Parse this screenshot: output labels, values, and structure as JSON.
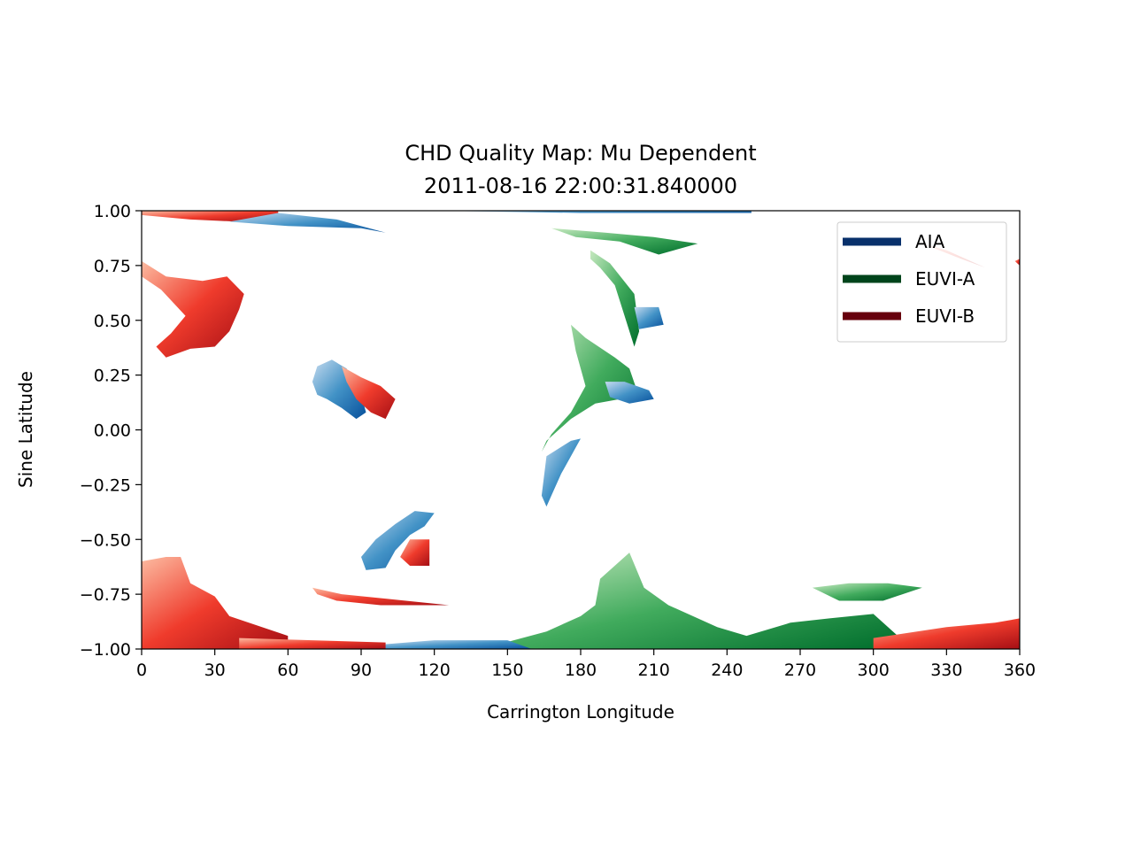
{
  "title": {
    "line1": "CHD Quality Map: Mu Dependent",
    "line2": "2011-08-16 22:00:31.840000"
  },
  "chart_data": {
    "type": "heatmap",
    "title": "CHD Quality Map: Mu Dependent 2011-08-16 22:00:31.840000",
    "xlabel": "Carrington Longitude",
    "ylabel": "Sine Latitude",
    "xlim": [
      0,
      360
    ],
    "ylim": [
      -1.0,
      1.0
    ],
    "x_ticks": [
      "0",
      "30",
      "60",
      "90",
      "120",
      "150",
      "180",
      "210",
      "240",
      "270",
      "300",
      "330",
      "360"
    ],
    "y_ticks": [
      "1.00",
      "0.75",
      "0.50",
      "0.25",
      "0.00",
      "−0.25",
      "−0.50",
      "−0.75",
      "−1.00"
    ],
    "legend_position": "top-right",
    "grid": false,
    "series": [
      {
        "name": "AIA",
        "color": "#08306b"
      },
      {
        "name": "EUVI-A",
        "color": "#00441b"
      },
      {
        "name": "EUVI-B",
        "color": "#67000d"
      }
    ],
    "regions": [
      {
        "instrument": "EUVI-B",
        "points": [
          [
            0,
            0.77
          ],
          [
            10,
            0.7
          ],
          [
            25,
            0.68
          ],
          [
            35,
            0.7
          ],
          [
            42,
            0.62
          ],
          [
            40,
            0.55
          ],
          [
            36,
            0.45
          ],
          [
            30,
            0.38
          ],
          [
            20,
            0.37
          ],
          [
            10,
            0.33
          ],
          [
            6,
            0.38
          ],
          [
            12,
            0.44
          ],
          [
            18,
            0.52
          ],
          [
            8,
            0.64
          ],
          [
            0,
            0.7
          ]
        ]
      },
      {
        "instrument": "AIA",
        "points": [
          [
            72,
            0.29
          ],
          [
            78,
            0.32
          ],
          [
            84,
            0.28
          ],
          [
            90,
            0.16
          ],
          [
            92,
            0.08
          ],
          [
            88,
            0.05
          ],
          [
            82,
            0.1
          ],
          [
            76,
            0.14
          ],
          [
            72,
            0.16
          ],
          [
            70,
            0.22
          ]
        ]
      },
      {
        "instrument": "EUVI-B",
        "points": [
          [
            82,
            0.29
          ],
          [
            90,
            0.24
          ],
          [
            98,
            0.2
          ],
          [
            104,
            0.14
          ],
          [
            100,
            0.05
          ],
          [
            94,
            0.08
          ],
          [
            88,
            0.14
          ],
          [
            84,
            0.22
          ]
        ]
      },
      {
        "instrument": "AIA",
        "points": [
          [
            104,
            -0.43
          ],
          [
            112,
            -0.37
          ],
          [
            120,
            -0.38
          ],
          [
            116,
            -0.44
          ],
          [
            110,
            -0.48
          ],
          [
            104,
            -0.55
          ],
          [
            100,
            -0.63
          ],
          [
            92,
            -0.64
          ],
          [
            90,
            -0.58
          ],
          [
            96,
            -0.5
          ]
        ]
      },
      {
        "instrument": "EUVI-B",
        "points": [
          [
            110,
            -0.5
          ],
          [
            118,
            -0.5
          ],
          [
            118,
            -0.62
          ],
          [
            110,
            -0.62
          ],
          [
            106,
            -0.58
          ]
        ]
      },
      {
        "instrument": "AIA",
        "points": [
          [
            166,
            -0.12
          ],
          [
            176,
            -0.05
          ],
          [
            180,
            -0.04
          ],
          [
            176,
            -0.12
          ],
          [
            172,
            -0.2
          ],
          [
            168,
            -0.3
          ],
          [
            166,
            -0.35
          ],
          [
            164,
            -0.3
          ]
        ]
      },
      {
        "instrument": "EUVI-A",
        "points": [
          [
            176,
            0.48
          ],
          [
            182,
            0.42
          ],
          [
            194,
            0.33
          ],
          [
            200,
            0.28
          ],
          [
            204,
            0.15
          ],
          [
            196,
            0.14
          ],
          [
            186,
            0.12
          ],
          [
            176,
            0.05
          ],
          [
            166,
            -0.05
          ],
          [
            164,
            -0.1
          ],
          [
            168,
            -0.02
          ],
          [
            176,
            0.08
          ],
          [
            182,
            0.2
          ],
          [
            178,
            0.36
          ]
        ]
      },
      {
        "instrument": "AIA",
        "points": [
          [
            190,
            0.22
          ],
          [
            198,
            0.22
          ],
          [
            208,
            0.18
          ],
          [
            210,
            0.14
          ],
          [
            200,
            0.12
          ],
          [
            192,
            0.15
          ]
        ]
      },
      {
        "instrument": "EUVI-A",
        "points": [
          [
            184,
            0.82
          ],
          [
            192,
            0.76
          ],
          [
            202,
            0.62
          ],
          [
            204,
            0.45
          ],
          [
            202,
            0.38
          ],
          [
            198,
            0.52
          ],
          [
            194,
            0.66
          ],
          [
            188,
            0.74
          ],
          [
            184,
            0.78
          ]
        ]
      },
      {
        "instrument": "EUVI-A",
        "points": [
          [
            168,
            0.92
          ],
          [
            190,
            0.9
          ],
          [
            210,
            0.88
          ],
          [
            222,
            0.86
          ],
          [
            228,
            0.85
          ],
          [
            212,
            0.8
          ],
          [
            196,
            0.86
          ],
          [
            178,
            0.88
          ]
        ]
      },
      {
        "instrument": "AIA",
        "points": [
          [
            202,
            0.56
          ],
          [
            212,
            0.56
          ],
          [
            214,
            0.48
          ],
          [
            204,
            0.46
          ]
        ]
      },
      {
        "instrument": "EUVI-B",
        "points": [
          [
            0,
            -0.6
          ],
          [
            10,
            -0.58
          ],
          [
            16,
            -0.58
          ],
          [
            20,
            -0.7
          ],
          [
            30,
            -0.76
          ],
          [
            36,
            -0.85
          ],
          [
            60,
            -0.94
          ],
          [
            60,
            -1.0
          ],
          [
            0,
            -1.0
          ]
        ]
      },
      {
        "instrument": "EUVI-B",
        "points": [
          [
            70,
            -0.72
          ],
          [
            82,
            -0.75
          ],
          [
            100,
            -0.77
          ],
          [
            126,
            -0.8
          ],
          [
            98,
            -0.8
          ],
          [
            80,
            -0.78
          ],
          [
            72,
            -0.75
          ]
        ]
      },
      {
        "instrument": "EUVI-A",
        "points": [
          [
            146,
            -0.98
          ],
          [
            166,
            -0.92
          ],
          [
            180,
            -0.85
          ],
          [
            186,
            -0.8
          ],
          [
            188,
            -0.68
          ],
          [
            200,
            -0.56
          ],
          [
            206,
            -0.72
          ],
          [
            216,
            -0.8
          ],
          [
            236,
            -0.9
          ],
          [
            248,
            -0.94
          ],
          [
            266,
            -0.88
          ],
          [
            282,
            -0.86
          ],
          [
            300,
            -0.84
          ],
          [
            310,
            -0.94
          ],
          [
            310,
            -1.0
          ],
          [
            146,
            -1.0
          ]
        ]
      },
      {
        "instrument": "EUVI-A",
        "points": [
          [
            275,
            -0.72
          ],
          [
            290,
            -0.7
          ],
          [
            306,
            -0.7
          ],
          [
            320,
            -0.72
          ],
          [
            304,
            -0.78
          ],
          [
            286,
            -0.78
          ]
        ]
      },
      {
        "instrument": "EUVI-B",
        "points": [
          [
            300,
            -0.95
          ],
          [
            330,
            -0.9
          ],
          [
            350,
            -0.88
          ],
          [
            360,
            -0.86
          ],
          [
            360,
            -1.0
          ],
          [
            300,
            -1.0
          ]
        ]
      },
      {
        "instrument": "AIA",
        "points": [
          [
            98,
            -0.98
          ],
          [
            120,
            -0.96
          ],
          [
            150,
            -0.96
          ],
          [
            160,
            -1.0
          ],
          [
            98,
            -1.0
          ]
        ]
      },
      {
        "instrument": "EUVI-B",
        "points": [
          [
            40,
            -0.95
          ],
          [
            70,
            -0.96
          ],
          [
            100,
            -0.97
          ],
          [
            100,
            -1.0
          ],
          [
            40,
            -1.0
          ]
        ]
      },
      {
        "instrument": "EUVI-B",
        "points": [
          [
            0,
            0.98
          ],
          [
            20,
            0.96
          ],
          [
            40,
            0.95
          ],
          [
            56,
            0.98
          ],
          [
            56,
            1.0
          ],
          [
            0,
            1.0
          ]
        ]
      },
      {
        "instrument": "AIA",
        "points": [
          [
            36,
            0.95
          ],
          [
            60,
            0.93
          ],
          [
            90,
            0.92
          ],
          [
            100,
            0.9
          ],
          [
            80,
            0.96
          ],
          [
            56,
            0.99
          ]
        ]
      },
      {
        "instrument": "AIA",
        "points": [
          [
            120,
            1.0
          ],
          [
            180,
            0.99
          ],
          [
            250,
            0.99
          ],
          [
            250,
            1.0
          ]
        ]
      },
      {
        "instrument": "EUVI-B",
        "points": [
          [
            320,
            0.85
          ],
          [
            336,
            0.78
          ],
          [
            346,
            0.74
          ],
          [
            330,
            0.82
          ]
        ]
      },
      {
        "instrument": "EUVI-B",
        "points": [
          [
            358,
            0.77
          ],
          [
            360,
            0.75
          ],
          [
            360,
            0.78
          ]
        ]
      }
    ]
  }
}
